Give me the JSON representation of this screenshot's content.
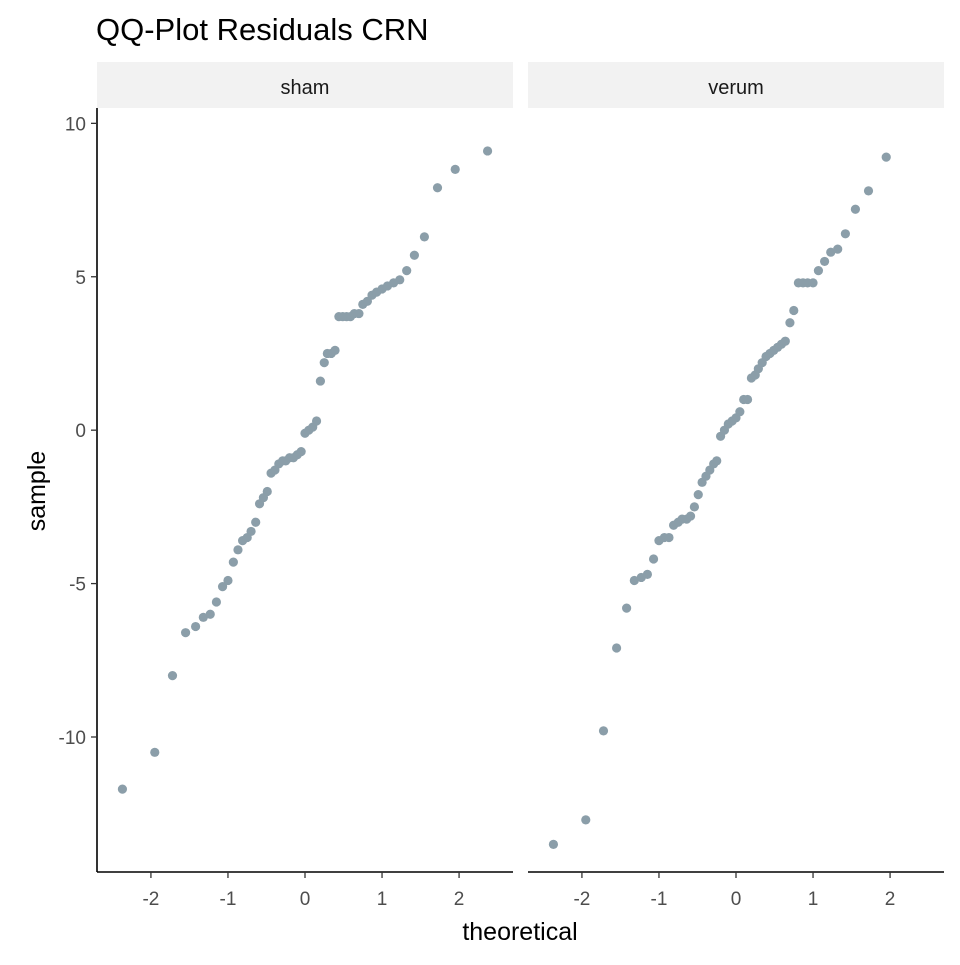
{
  "chart_data": {
    "type": "scatter",
    "title": "QQ-Plot Residuals CRN",
    "xlabel": "theoretical",
    "ylabel": "sample",
    "xlim": [
      -2.7,
      2.7
    ],
    "ylim": [
      -14.4,
      10.5
    ],
    "x_ticks": [
      -2,
      -1,
      0,
      1,
      2
    ],
    "x_tick_labels": [
      "-2",
      "-1",
      "0",
      "1",
      "2"
    ],
    "y_ticks": [
      10,
      5,
      0,
      -5,
      -10
    ],
    "y_tick_labels": [
      "10",
      "5",
      "0",
      "-5",
      "-10"
    ],
    "grid": false,
    "point_color": "#8b9ea9",
    "panels": [
      {
        "label": "sham",
        "points": [
          [
            -2.37,
            -11.7
          ],
          [
            -1.95,
            -10.5
          ],
          [
            -1.72,
            -8.0
          ],
          [
            -1.55,
            -6.6
          ],
          [
            -1.42,
            -6.4
          ],
          [
            -1.32,
            -6.1
          ],
          [
            -1.23,
            -6.0
          ],
          [
            -1.15,
            -5.6
          ],
          [
            -1.07,
            -5.1
          ],
          [
            -1.0,
            -4.9
          ],
          [
            -0.93,
            -4.3
          ],
          [
            -0.87,
            -3.9
          ],
          [
            -0.81,
            -3.6
          ],
          [
            -0.75,
            -3.5
          ],
          [
            -0.7,
            -3.3
          ],
          [
            -0.64,
            -3.0
          ],
          [
            -0.59,
            -2.4
          ],
          [
            -0.54,
            -2.2
          ],
          [
            -0.49,
            -2.0
          ],
          [
            -0.44,
            -1.4
          ],
          [
            -0.39,
            -1.3
          ],
          [
            -0.34,
            -1.1
          ],
          [
            -0.29,
            -1.0
          ],
          [
            -0.25,
            -1.0
          ],
          [
            -0.2,
            -0.9
          ],
          [
            -0.15,
            -0.9
          ],
          [
            -0.1,
            -0.8
          ],
          [
            -0.05,
            -0.7
          ],
          [
            0.0,
            -0.1
          ],
          [
            0.05,
            0.0
          ],
          [
            0.1,
            0.1
          ],
          [
            0.15,
            0.3
          ],
          [
            0.2,
            1.6
          ],
          [
            0.25,
            2.2
          ],
          [
            0.29,
            2.5
          ],
          [
            0.34,
            2.5
          ],
          [
            0.39,
            2.6
          ],
          [
            0.44,
            3.7
          ],
          [
            0.49,
            3.7
          ],
          [
            0.54,
            3.7
          ],
          [
            0.59,
            3.7
          ],
          [
            0.64,
            3.8
          ],
          [
            0.7,
            3.8
          ],
          [
            0.75,
            4.1
          ],
          [
            0.81,
            4.2
          ],
          [
            0.87,
            4.4
          ],
          [
            0.93,
            4.5
          ],
          [
            1.0,
            4.6
          ],
          [
            1.07,
            4.7
          ],
          [
            1.15,
            4.8
          ],
          [
            1.23,
            4.9
          ],
          [
            1.32,
            5.2
          ],
          [
            1.42,
            5.7
          ],
          [
            1.55,
            6.3
          ],
          [
            1.72,
            7.9
          ],
          [
            1.95,
            8.5
          ],
          [
            2.37,
            9.1
          ]
        ]
      },
      {
        "label": "verum",
        "points": [
          [
            -2.37,
            -13.5
          ],
          [
            -1.95,
            -12.7
          ],
          [
            -1.72,
            -9.8
          ],
          [
            -1.55,
            -7.1
          ],
          [
            -1.42,
            -5.8
          ],
          [
            -1.32,
            -4.9
          ],
          [
            -1.23,
            -4.8
          ],
          [
            -1.15,
            -4.7
          ],
          [
            -1.07,
            -4.2
          ],
          [
            -1.0,
            -3.6
          ],
          [
            -0.93,
            -3.5
          ],
          [
            -0.87,
            -3.5
          ],
          [
            -0.81,
            -3.1
          ],
          [
            -0.75,
            -3.0
          ],
          [
            -0.7,
            -2.9
          ],
          [
            -0.64,
            -2.9
          ],
          [
            -0.59,
            -2.8
          ],
          [
            -0.54,
            -2.5
          ],
          [
            -0.49,
            -2.1
          ],
          [
            -0.44,
            -1.7
          ],
          [
            -0.39,
            -1.5
          ],
          [
            -0.34,
            -1.3
          ],
          [
            -0.29,
            -1.1
          ],
          [
            -0.25,
            -1.0
          ],
          [
            -0.2,
            -0.2
          ],
          [
            -0.15,
            0.0
          ],
          [
            -0.1,
            0.2
          ],
          [
            -0.05,
            0.3
          ],
          [
            0.0,
            0.4
          ],
          [
            0.05,
            0.6
          ],
          [
            0.1,
            1.0
          ],
          [
            0.15,
            1.0
          ],
          [
            0.2,
            1.7
          ],
          [
            0.25,
            1.8
          ],
          [
            0.29,
            2.0
          ],
          [
            0.34,
            2.2
          ],
          [
            0.39,
            2.4
          ],
          [
            0.44,
            2.5
          ],
          [
            0.49,
            2.6
          ],
          [
            0.54,
            2.7
          ],
          [
            0.59,
            2.8
          ],
          [
            0.64,
            2.9
          ],
          [
            0.7,
            3.5
          ],
          [
            0.75,
            3.9
          ],
          [
            0.81,
            4.8
          ],
          [
            0.87,
            4.8
          ],
          [
            0.93,
            4.8
          ],
          [
            1.0,
            4.8
          ],
          [
            1.07,
            5.2
          ],
          [
            1.15,
            5.5
          ],
          [
            1.23,
            5.8
          ],
          [
            1.32,
            5.9
          ],
          [
            1.42,
            6.4
          ],
          [
            1.55,
            7.2
          ],
          [
            1.72,
            7.8
          ],
          [
            1.95,
            8.9
          ]
        ]
      }
    ]
  }
}
